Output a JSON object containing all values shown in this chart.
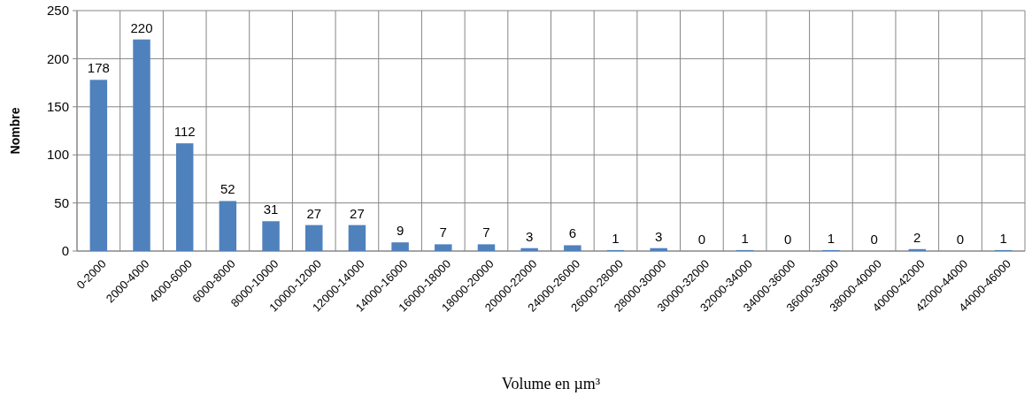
{
  "chart_data": {
    "type": "bar",
    "xlabel": "Volume en µm³",
    "ylabel": "Nombre",
    "categories": [
      "0-2000",
      "2000-4000",
      "4000-6000",
      "6000-8000",
      "8000-10000",
      "10000-12000",
      "12000-14000",
      "14000-16000",
      "16000-18000",
      "18000-20000",
      "20000-22000",
      "24000-26000",
      "26000-28000",
      "28000-30000",
      "30000-32000",
      "32000-34000",
      "34000-36000",
      "36000-38000",
      "38000-40000",
      "40000-42000",
      "42000-44000",
      "44000-46000"
    ],
    "values": [
      178,
      220,
      112,
      52,
      31,
      27,
      27,
      9,
      7,
      7,
      3,
      6,
      1,
      3,
      0,
      1,
      0,
      1,
      0,
      2,
      0,
      1
    ],
    "color": "#4f81bd",
    "ylim": [
      0,
      250
    ],
    "yticks": [
      0,
      50,
      100,
      150,
      200,
      250
    ],
    "grid": true,
    "data_labels": true
  }
}
